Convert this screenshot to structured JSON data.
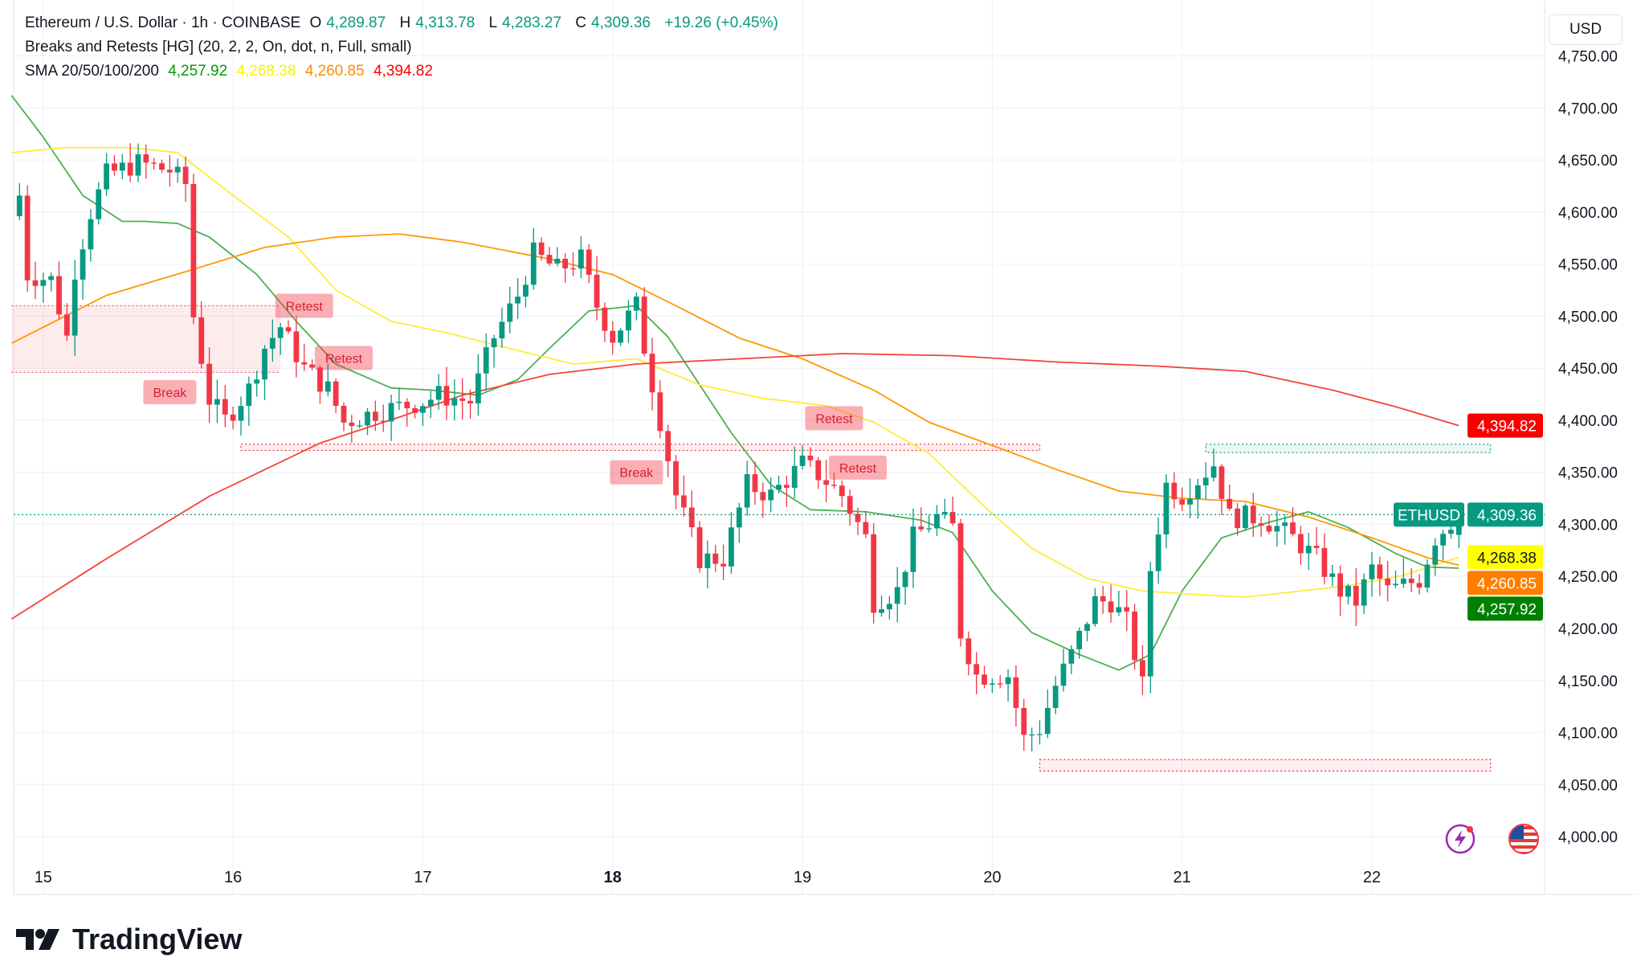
{
  "legend": {
    "symbol": "Ethereum / U.S. Dollar · 1h · COINBASE",
    "open_label": "O",
    "open": "4,289.87",
    "high_label": "H",
    "high": "4,313.78",
    "low_label": "L",
    "low": "4,283.27",
    "close_label": "C",
    "close": "4,309.36",
    "change": "+19.26 (+0.45%)",
    "indicator": "Breaks and Retests [HG] (20, 2, 2, On, dot, n, Full, small)",
    "sma_label": "SMA 20/50/100/200",
    "sma_values": [
      "4,257.92",
      "4,268.38",
      "4,260.85",
      "4,394.82"
    ]
  },
  "currency_button": "USD",
  "brand": "TradingView",
  "icons": [
    "lightning-icon",
    "us-flag-icon"
  ],
  "chart_data": {
    "type": "candlestick",
    "interval": "1h",
    "ylim": [
      4000,
      4775
    ],
    "yticks": [
      "4,000.00",
      "4,050.00",
      "4,100.00",
      "4,150.00",
      "4,200.00",
      "4,250.00",
      "4,300.00",
      "4,350.00",
      "4,400.00",
      "4,450.00",
      "4,500.00",
      "4,550.00",
      "4,600.00",
      "4,650.00",
      "4,700.00",
      "4,750.00"
    ],
    "xticks": [
      "15",
      "16",
      "17",
      "18",
      "19",
      "20",
      "21",
      "22"
    ],
    "grid": true,
    "colors": {
      "up": "#089981",
      "down": "#f23645",
      "sma20": "#4caf50",
      "sma50": "#ffeb3b",
      "sma100": "#ff9800",
      "sma200": "#f44336"
    },
    "close_path": [
      [
        "14 21:00",
        4616
      ],
      [
        "14 22:00",
        4540
      ],
      [
        "15 01:00",
        4535
      ],
      [
        "15 03:00",
        4480
      ],
      [
        "15 04:00",
        4545
      ],
      [
        "15 06:00",
        4600
      ],
      [
        "15 08:00",
        4636
      ],
      [
        "15 12:00",
        4647
      ],
      [
        "15 16:00",
        4640
      ],
      [
        "15 18:00",
        4627
      ],
      [
        "15 19:00",
        4500
      ],
      [
        "15 21:00",
        4420
      ],
      [
        "15 23:00",
        4400
      ],
      [
        "16 02:00",
        4430
      ],
      [
        "16 04:00",
        4470
      ],
      [
        "16 06:00",
        4490
      ],
      [
        "16 09:00",
        4450
      ],
      [
        "16 12:00",
        4430
      ],
      [
        "16 14:00",
        4398
      ],
      [
        "16 18:00",
        4408
      ],
      [
        "17 00:00",
        4418
      ],
      [
        "17 02:00",
        4424
      ],
      [
        "17 06:00",
        4418
      ],
      [
        "17 09:00",
        4480
      ],
      [
        "17 12:00",
        4520
      ],
      [
        "17 14:00",
        4560
      ],
      [
        "17 17:00",
        4545
      ],
      [
        "17 20:00",
        4555
      ],
      [
        "17 22:00",
        4510
      ],
      [
        "18 00:00",
        4480
      ],
      [
        "18 03:00",
        4510
      ],
      [
        "18 04:00",
        4470
      ],
      [
        "18 06:00",
        4400
      ],
      [
        "18 08:00",
        4328
      ],
      [
        "18 11:00",
        4267
      ],
      [
        "18 14:00",
        4267
      ],
      [
        "18 17:00",
        4338
      ],
      [
        "18 20:00",
        4328
      ],
      [
        "19 00:00",
        4358
      ],
      [
        "19 02:00",
        4348
      ],
      [
        "19 05:00",
        4328
      ],
      [
        "19 08:00",
        4287
      ],
      [
        "19 09:00",
        4226
      ],
      [
        "19 12:00",
        4236
      ],
      [
        "19 14:00",
        4287
      ],
      [
        "19 17:00",
        4307
      ],
      [
        "19 19:00",
        4297
      ],
      [
        "19 20:00",
        4196
      ],
      [
        "19 22:00",
        4155
      ],
      [
        "20 02:00",
        4155
      ],
      [
        "20 04:00",
        4094
      ],
      [
        "20 06:00",
        4104
      ],
      [
        "20 08:00",
        4145
      ],
      [
        "20 10:00",
        4175
      ],
      [
        "20 13:00",
        4226
      ],
      [
        "20 15:00",
        4226
      ],
      [
        "20 17:00",
        4206
      ],
      [
        "20 19:00",
        4145
      ],
      [
        "20 20:00",
        4257
      ],
      [
        "20 22:00",
        4338
      ],
      [
        "21 00:00",
        4328
      ],
      [
        "21 04:00",
        4358
      ],
      [
        "21 06:00",
        4307
      ],
      [
        "21 10:00",
        4307
      ],
      [
        "21 14:00",
        4287
      ],
      [
        "21 17:00",
        4267
      ],
      [
        "21 20:00",
        4236
      ],
      [
        "21 22:00",
        4226
      ],
      [
        "22 00:00",
        4257
      ],
      [
        "22 02:00",
        4236
      ],
      [
        "22 06:00",
        4247
      ],
      [
        "22 08:00",
        4287
      ],
      [
        "22 11:00",
        4309.36
      ]
    ],
    "series": [
      {
        "name": "SMA 20",
        "last": "4,257.92",
        "points": [
          [
            "14 20:00",
            4712
          ],
          [
            "15 00:00",
            4672
          ],
          [
            "15 05:00",
            4616
          ],
          [
            "15 10:00",
            4591
          ],
          [
            "15 13:00",
            4591
          ],
          [
            "15 17:00",
            4589
          ],
          [
            "15 21:00",
            4576
          ],
          [
            "16 03:00",
            4540
          ],
          [
            "16 08:00",
            4495
          ],
          [
            "16 13:00",
            4454
          ],
          [
            "16 20:00",
            4431
          ],
          [
            "17 01:00",
            4429
          ],
          [
            "17 07:00",
            4424
          ],
          [
            "17 12:00",
            4439
          ],
          [
            "17 16:00",
            4469
          ],
          [
            "17 21:00",
            4505
          ],
          [
            "18 03:00",
            4510
          ],
          [
            "18 07:00",
            4480
          ],
          [
            "18 11:00",
            4434
          ],
          [
            "18 15:00",
            4388
          ],
          [
            "18 20:00",
            4338
          ],
          [
            "19 01:00",
            4314
          ],
          [
            "19 08:00",
            4312
          ],
          [
            "19 15:00",
            4304
          ],
          [
            "19 19:00",
            4292
          ],
          [
            "20 00:00",
            4236
          ],
          [
            "20 05:00",
            4196
          ],
          [
            "20 11:00",
            4175
          ],
          [
            "20 16:00",
            4160
          ],
          [
            "20 20:00",
            4175
          ],
          [
            "21 00:00",
            4236
          ],
          [
            "21 05:00",
            4287
          ],
          [
            "21 11:00",
            4302
          ],
          [
            "21 16:00",
            4312
          ],
          [
            "21 21:00",
            4297
          ],
          [
            "22 03:00",
            4272
          ],
          [
            "22 07:00",
            4259
          ],
          [
            "22 11:00",
            4257.92
          ]
        ]
      },
      {
        "name": "SMA 50",
        "last": "4,268.38",
        "points": [
          [
            "14 20:00",
            4657
          ],
          [
            "15 03:00",
            4662
          ],
          [
            "15 11:00",
            4662
          ],
          [
            "15 17:00",
            4657
          ],
          [
            "16 00:00",
            4616
          ],
          [
            "16 07:00",
            4576
          ],
          [
            "16 13:00",
            4525
          ],
          [
            "16 20:00",
            4495
          ],
          [
            "17 03:00",
            4484
          ],
          [
            "17 11:00",
            4469
          ],
          [
            "17 19:00",
            4454
          ],
          [
            "18 03:00",
            4459
          ],
          [
            "18 11:00",
            4434
          ],
          [
            "18 19:00",
            4421
          ],
          [
            "19 03:00",
            4414
          ],
          [
            "19 09:00",
            4398
          ],
          [
            "19 16:00",
            4368
          ],
          [
            "19 23:00",
            4317
          ],
          [
            "20 05:00",
            4277
          ],
          [
            "20 12:00",
            4248
          ],
          [
            "20 19:00",
            4236
          ],
          [
            "21 01:00",
            4233
          ],
          [
            "21 08:00",
            4230
          ],
          [
            "21 15:00",
            4236
          ],
          [
            "21 21:00",
            4241
          ],
          [
            "22 04:00",
            4251
          ],
          [
            "22 11:00",
            4268.38
          ]
        ]
      },
      {
        "name": "SMA 100",
        "last": "4,260.85",
        "points": [
          [
            "14 20:00",
            4474
          ],
          [
            "15 08:00",
            4520
          ],
          [
            "15 19:00",
            4545
          ],
          [
            "16 04:00",
            4566
          ],
          [
            "16 13:00",
            4576
          ],
          [
            "16 21:00",
            4579
          ],
          [
            "17 05:00",
            4571
          ],
          [
            "17 16:00",
            4555
          ],
          [
            "18 00:00",
            4540
          ],
          [
            "18 08:00",
            4510
          ],
          [
            "18 16:00",
            4479
          ],
          [
            "19 00:00",
            4459
          ],
          [
            "19 09:00",
            4429
          ],
          [
            "19 16:00",
            4398
          ],
          [
            "20 01:00",
            4373
          ],
          [
            "20 08:00",
            4353
          ],
          [
            "20 16:00",
            4332
          ],
          [
            "21 00:00",
            4325
          ],
          [
            "21 08:00",
            4322
          ],
          [
            "21 16:00",
            4307
          ],
          [
            "22 00:00",
            4287
          ],
          [
            "22 07:00",
            4268
          ],
          [
            "22 11:00",
            4260.85
          ]
        ]
      },
      {
        "name": "SMA 200",
        "last": "4,394.82",
        "points": [
          [
            "14 20:00",
            4209
          ],
          [
            "15 08:00",
            4267
          ],
          [
            "15 21:00",
            4327
          ],
          [
            "16 11:00",
            4378
          ],
          [
            "16 21:00",
            4403
          ],
          [
            "17 05:00",
            4424
          ],
          [
            "17 16:00",
            4444
          ],
          [
            "18 03:00",
            4454
          ],
          [
            "18 16:00",
            4459
          ],
          [
            "19 05:00",
            4464
          ],
          [
            "19 19:00",
            4462
          ],
          [
            "20 08:00",
            4456
          ],
          [
            "20 21:00",
            4452
          ],
          [
            "21 08:00",
            4447
          ],
          [
            "21 19:00",
            4429
          ],
          [
            "22 03:00",
            4413
          ],
          [
            "22 11:00",
            4394.82
          ]
        ]
      }
    ],
    "current_price": {
      "symbol": "ETHUSD",
      "value": "4,309.36",
      "price": 4309.36
    },
    "zones": [
      {
        "kind": "resistance-box",
        "from": "14 20:00",
        "to": "16 06:00",
        "top": 4510,
        "bottom": 4446,
        "color": "#f23645"
      },
      {
        "kind": "dotted-line",
        "from": "16 01:00",
        "to": "20 06:00",
        "top": 4377,
        "bottom": 4371,
        "color": "#f23645"
      },
      {
        "kind": "dotted-line",
        "from": "20 06:00",
        "to": "22 15:00",
        "top": 4074,
        "bottom": 4063,
        "color": "#f23645"
      },
      {
        "kind": "dotted-line",
        "from": "21 03:00",
        "to": "22 15:00",
        "top": 4377,
        "bottom": 4369,
        "color": "#089981"
      }
    ],
    "annotations": [
      {
        "text": "Retest",
        "time": "16 09:00",
        "price": 4510
      },
      {
        "text": "Retest",
        "time": "16 14:00",
        "price": 4486
      },
      {
        "text": "Break",
        "time": "15 16:00",
        "price": 4427
      },
      {
        "text": "Break",
        "time": "18 03:00",
        "price": 4350
      },
      {
        "text": "Retest",
        "time": "19 04:00",
        "price": 4402
      },
      {
        "text": "Retest",
        "time": "19 07:00",
        "price": 4407
      }
    ]
  }
}
